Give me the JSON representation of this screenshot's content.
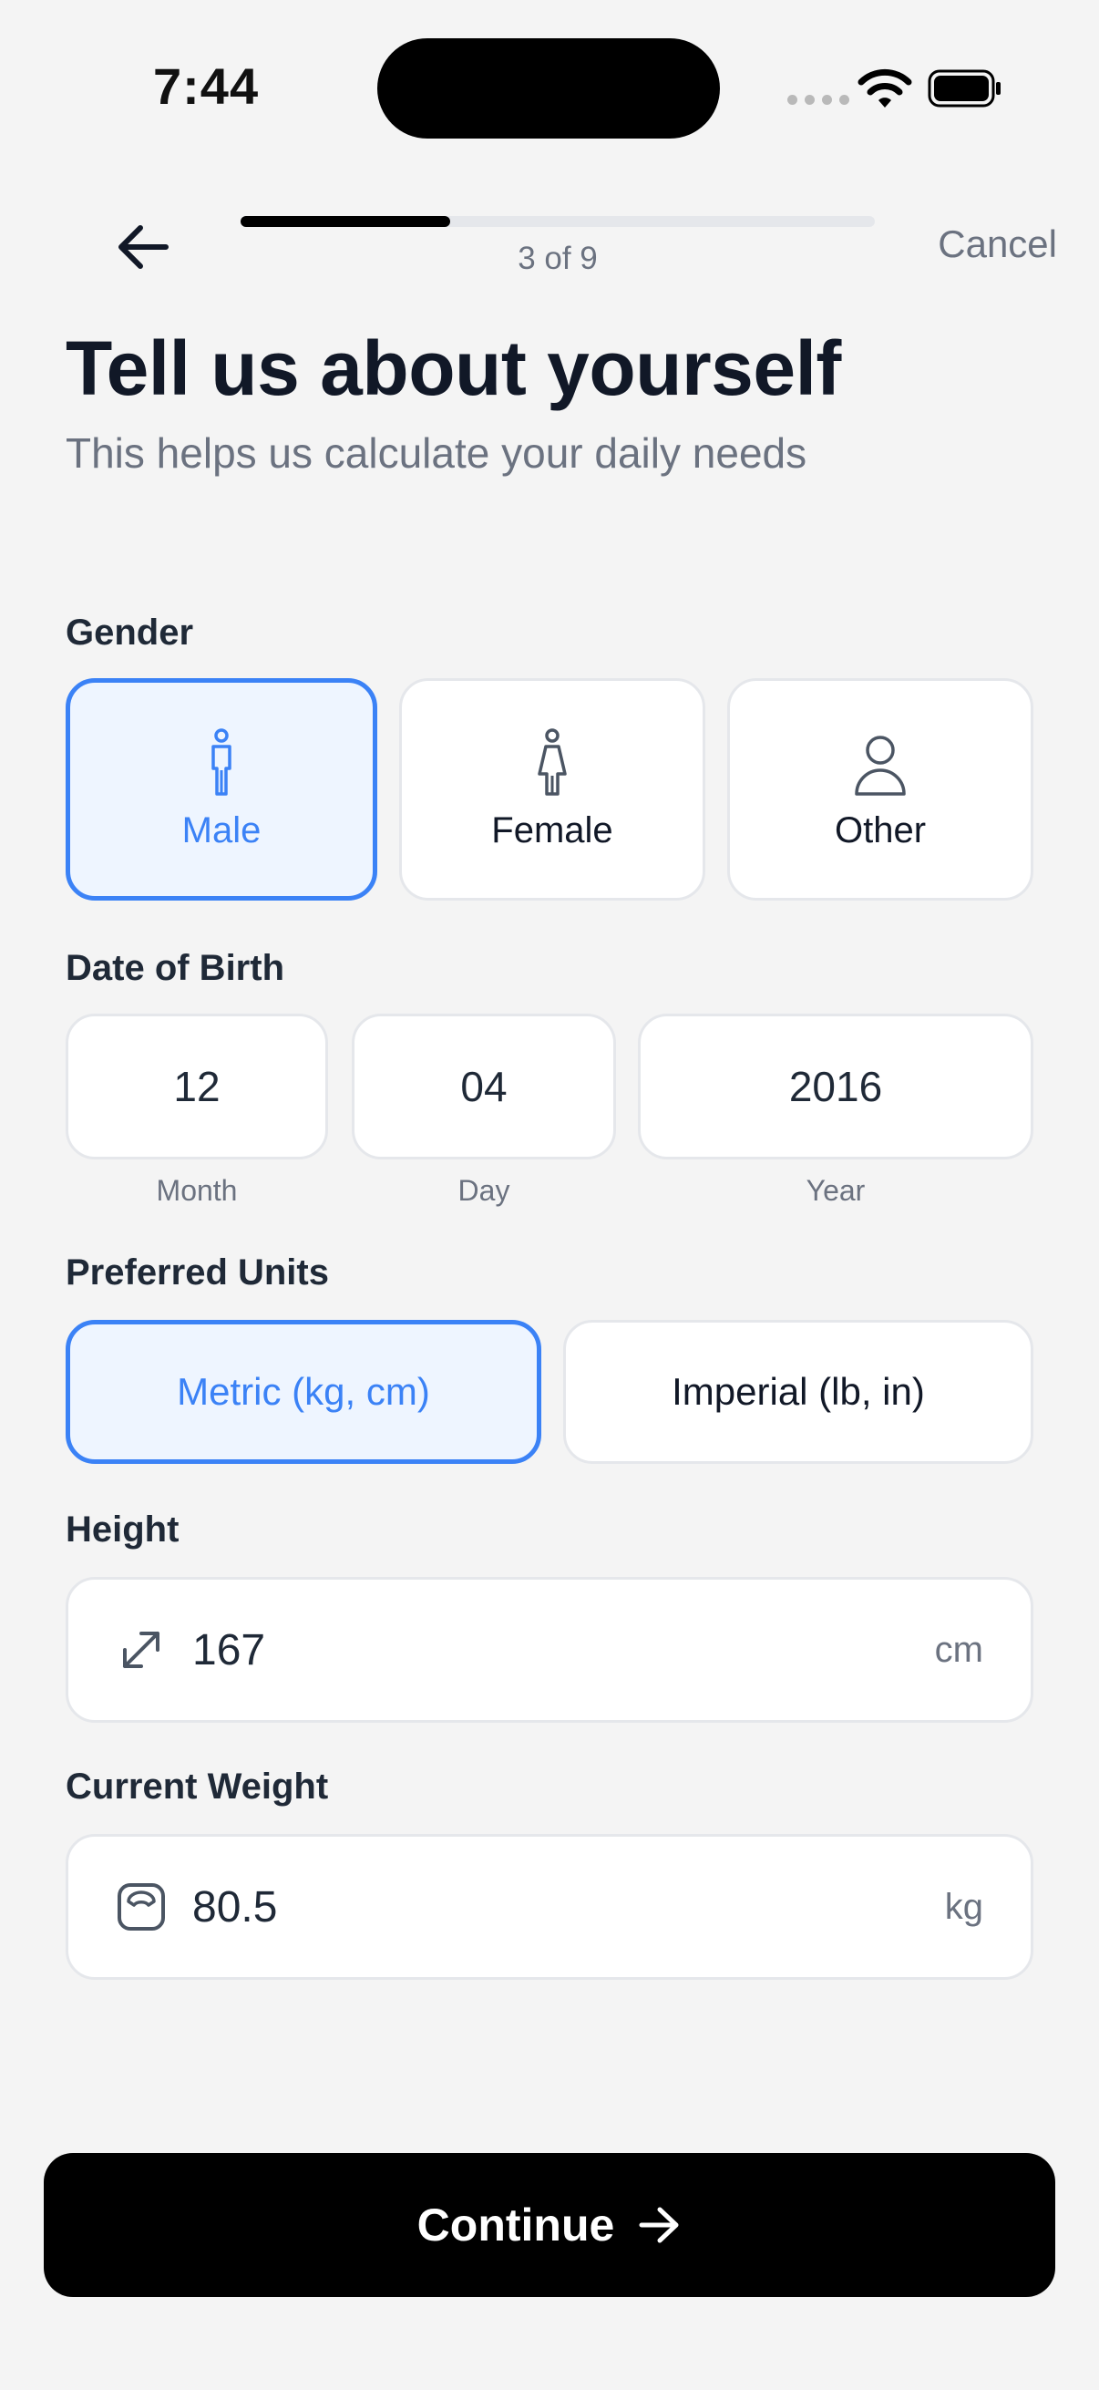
{
  "status_bar": {
    "time": "7:44"
  },
  "nav": {
    "step_label": "3 of 9",
    "progress": 0.33,
    "cancel_label": "Cancel"
  },
  "header": {
    "title": "Tell us about yourself",
    "subtitle": "This helps us calculate your daily needs"
  },
  "gender": {
    "label": "Gender",
    "options": [
      {
        "label": "Male",
        "icon": "male-icon",
        "selected": true
      },
      {
        "label": "Female",
        "icon": "female-icon",
        "selected": false
      },
      {
        "label": "Other",
        "icon": "person-icon",
        "selected": false
      }
    ]
  },
  "dob": {
    "label": "Date of Birth",
    "month": {
      "value": "12",
      "caption": "Month"
    },
    "day": {
      "value": "04",
      "caption": "Day"
    },
    "year": {
      "value": "2016",
      "caption": "Year"
    }
  },
  "units": {
    "label": "Preferred Units",
    "options": [
      {
        "label": "Metric (kg, cm)",
        "selected": true
      },
      {
        "label": "Imperial (lb, in)",
        "selected": false
      }
    ]
  },
  "height": {
    "label": "Height",
    "value": "167",
    "unit": "cm",
    "icon": "resize-arrows-icon"
  },
  "weight": {
    "label": "Current Weight",
    "value": "80.5",
    "unit": "kg",
    "icon": "scale-icon"
  },
  "continue_label": "Continue",
  "colors": {
    "accent": "#3b82f6",
    "accent_bg": "#eef5ff",
    "primary_button": "#000000"
  }
}
